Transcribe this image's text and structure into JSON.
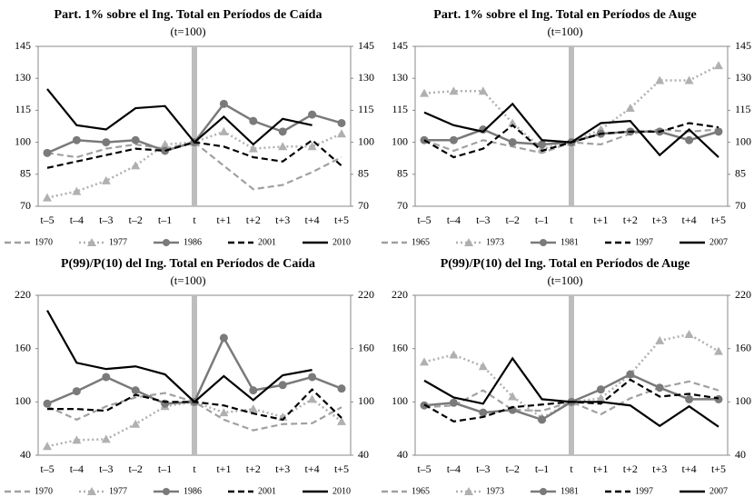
{
  "chart_data": [
    {
      "type": "line",
      "title": "Part. 1% sobre el Ing. Total en Períodos de Caída",
      "subtitle": "(t=100)",
      "categories": [
        "t–5",
        "t–4",
        "t–3",
        "t–2",
        "t–1",
        "t",
        "t+1",
        "t+2",
        "t+3",
        "t+4",
        "t+5"
      ],
      "ylim": [
        70,
        145
      ],
      "yticks": [
        70,
        85,
        100,
        115,
        130,
        145
      ],
      "series": [
        {
          "name": "1970",
          "color": "#a0a0a0",
          "dash": "dashed",
          "marker": "none",
          "values": [
            95,
            93,
            97,
            99,
            97,
            100,
            89,
            78,
            80,
            86,
            93
          ]
        },
        {
          "name": "1977",
          "color": "#b0b0b0",
          "dash": "dotted",
          "marker": "triangle",
          "values": [
            74,
            77,
            82,
            89,
            99,
            100,
            105,
            97,
            98,
            98,
            104
          ]
        },
        {
          "name": "1986",
          "color": "#7a7a7a",
          "dash": "solid",
          "marker": "circle",
          "values": [
            95,
            101,
            100,
            101,
            96,
            100,
            118,
            110,
            105,
            113,
            109
          ]
        },
        {
          "name": "2001",
          "color": "#000000",
          "dash": "dashed",
          "marker": "none",
          "values": [
            88,
            91,
            94,
            97,
            96,
            100,
            98,
            93,
            91,
            101,
            89
          ]
        },
        {
          "name": "2010",
          "color": "#000000",
          "dash": "solid",
          "marker": "none",
          "values": [
            125,
            108,
            106,
            116,
            117,
            100,
            112,
            99,
            111,
            108,
            null
          ]
        }
      ]
    },
    {
      "type": "line",
      "title": "Part. 1% sobre el Ing. Total en Períodos de Auge",
      "subtitle": "(t=100)",
      "categories": [
        "t–5",
        "t–4",
        "t–3",
        "t–2",
        "t–1",
        "t",
        "t+1",
        "t+2",
        "t+3",
        "t+4",
        "t+5"
      ],
      "ylim": [
        70,
        145
      ],
      "yticks": [
        70,
        85,
        100,
        115,
        130,
        145
      ],
      "series": [
        {
          "name": "1965",
          "color": "#a0a0a0",
          "dash": "dashed",
          "marker": "none",
          "values": [
            101,
            96,
            101,
            98,
            95,
            100,
            99,
            104,
            106,
            105,
            106
          ]
        },
        {
          "name": "1973",
          "color": "#b0b0b0",
          "dash": "dotted",
          "marker": "triangle",
          "values": [
            123,
            124,
            124,
            109,
            97,
            100,
            106,
            116,
            129,
            129,
            136
          ]
        },
        {
          "name": "1981",
          "color": "#7a7a7a",
          "dash": "solid",
          "marker": "circle",
          "values": [
            101,
            101,
            106,
            100,
            99,
            100,
            104,
            105,
            105,
            101,
            105
          ]
        },
        {
          "name": "1997",
          "color": "#000000",
          "dash": "dashed",
          "marker": "none",
          "values": [
            101,
            93,
            97,
            108,
            96,
            100,
            104,
            105,
            105,
            109,
            107
          ]
        },
        {
          "name": "2007",
          "color": "#000000",
          "dash": "solid",
          "marker": "none",
          "values": [
            114,
            108,
            105,
            118,
            101,
            100,
            109,
            110,
            94,
            106,
            93
          ]
        }
      ]
    },
    {
      "type": "line",
      "title": "P(99)/P(10) del Ing. Total en Períodos de Caída",
      "subtitle": "(t=100)",
      "categories": [
        "t–5",
        "t–4",
        "t–3",
        "t–2",
        "t–1",
        "t",
        "t+1",
        "t+2",
        "t+3",
        "t+4",
        "t+5"
      ],
      "ylim": [
        40,
        220
      ],
      "yticks": [
        40,
        100,
        160,
        220
      ],
      "series": [
        {
          "name": "1970",
          "color": "#a0a0a0",
          "dash": "dashed",
          "marker": "none",
          "values": [
            95,
            80,
            95,
            105,
            110,
            100,
            80,
            68,
            75,
            76,
            94
          ]
        },
        {
          "name": "1977",
          "color": "#b0b0b0",
          "dash": "dotted",
          "marker": "triangle",
          "values": [
            50,
            57,
            58,
            75,
            95,
            100,
            88,
            92,
            83,
            103,
            78
          ]
        },
        {
          "name": "1986",
          "color": "#7a7a7a",
          "dash": "solid",
          "marker": "circle",
          "values": [
            98,
            112,
            128,
            113,
            98,
            100,
            172,
            113,
            119,
            128,
            115
          ]
        },
        {
          "name": "2001",
          "color": "#000000",
          "dash": "dashed",
          "marker": "none",
          "values": [
            92,
            92,
            90,
            108,
            100,
            100,
            96,
            87,
            80,
            114,
            82
          ]
        },
        {
          "name": "2010",
          "color": "#000000",
          "dash": "solid",
          "marker": "none",
          "values": [
            203,
            144,
            137,
            140,
            131,
            100,
            129,
            102,
            130,
            136,
            null
          ]
        }
      ]
    },
    {
      "type": "line",
      "title": "P(99)/P(10) del Ing. Total en Períodos de Auge",
      "subtitle": "(t=100)",
      "categories": [
        "t–5",
        "t–4",
        "t–3",
        "t–2",
        "t–1",
        "t",
        "t+1",
        "t+2",
        "t+3",
        "t+4",
        "t+5"
      ],
      "ylim": [
        40,
        220
      ],
      "yticks": [
        40,
        100,
        160,
        220
      ],
      "series": [
        {
          "name": "1965",
          "color": "#a0a0a0",
          "dash": "dashed",
          "marker": "none",
          "values": [
            94,
            96,
            113,
            91,
            90,
            100,
            86,
            104,
            116,
            123,
            113
          ]
        },
        {
          "name": "1973",
          "color": "#b0b0b0",
          "dash": "dotted",
          "marker": "triangle",
          "values": [
            145,
            153,
            140,
            106,
            82,
            100,
            104,
            131,
            169,
            176,
            157
          ]
        },
        {
          "name": "1981",
          "color": "#7a7a7a",
          "dash": "solid",
          "marker": "circle",
          "values": [
            96,
            99,
            88,
            91,
            80,
            100,
            114,
            131,
            116,
            103,
            103
          ]
        },
        {
          "name": "1997",
          "color": "#000000",
          "dash": "dashed",
          "marker": "none",
          "values": [
            97,
            78,
            83,
            94,
            97,
            100,
            98,
            125,
            106,
            109,
            104
          ]
        },
        {
          "name": "2007",
          "color": "#000000",
          "dash": "solid",
          "marker": "none",
          "values": [
            124,
            105,
            98,
            149,
            103,
            100,
            100,
            96,
            73,
            95,
            72
          ]
        }
      ]
    }
  ]
}
